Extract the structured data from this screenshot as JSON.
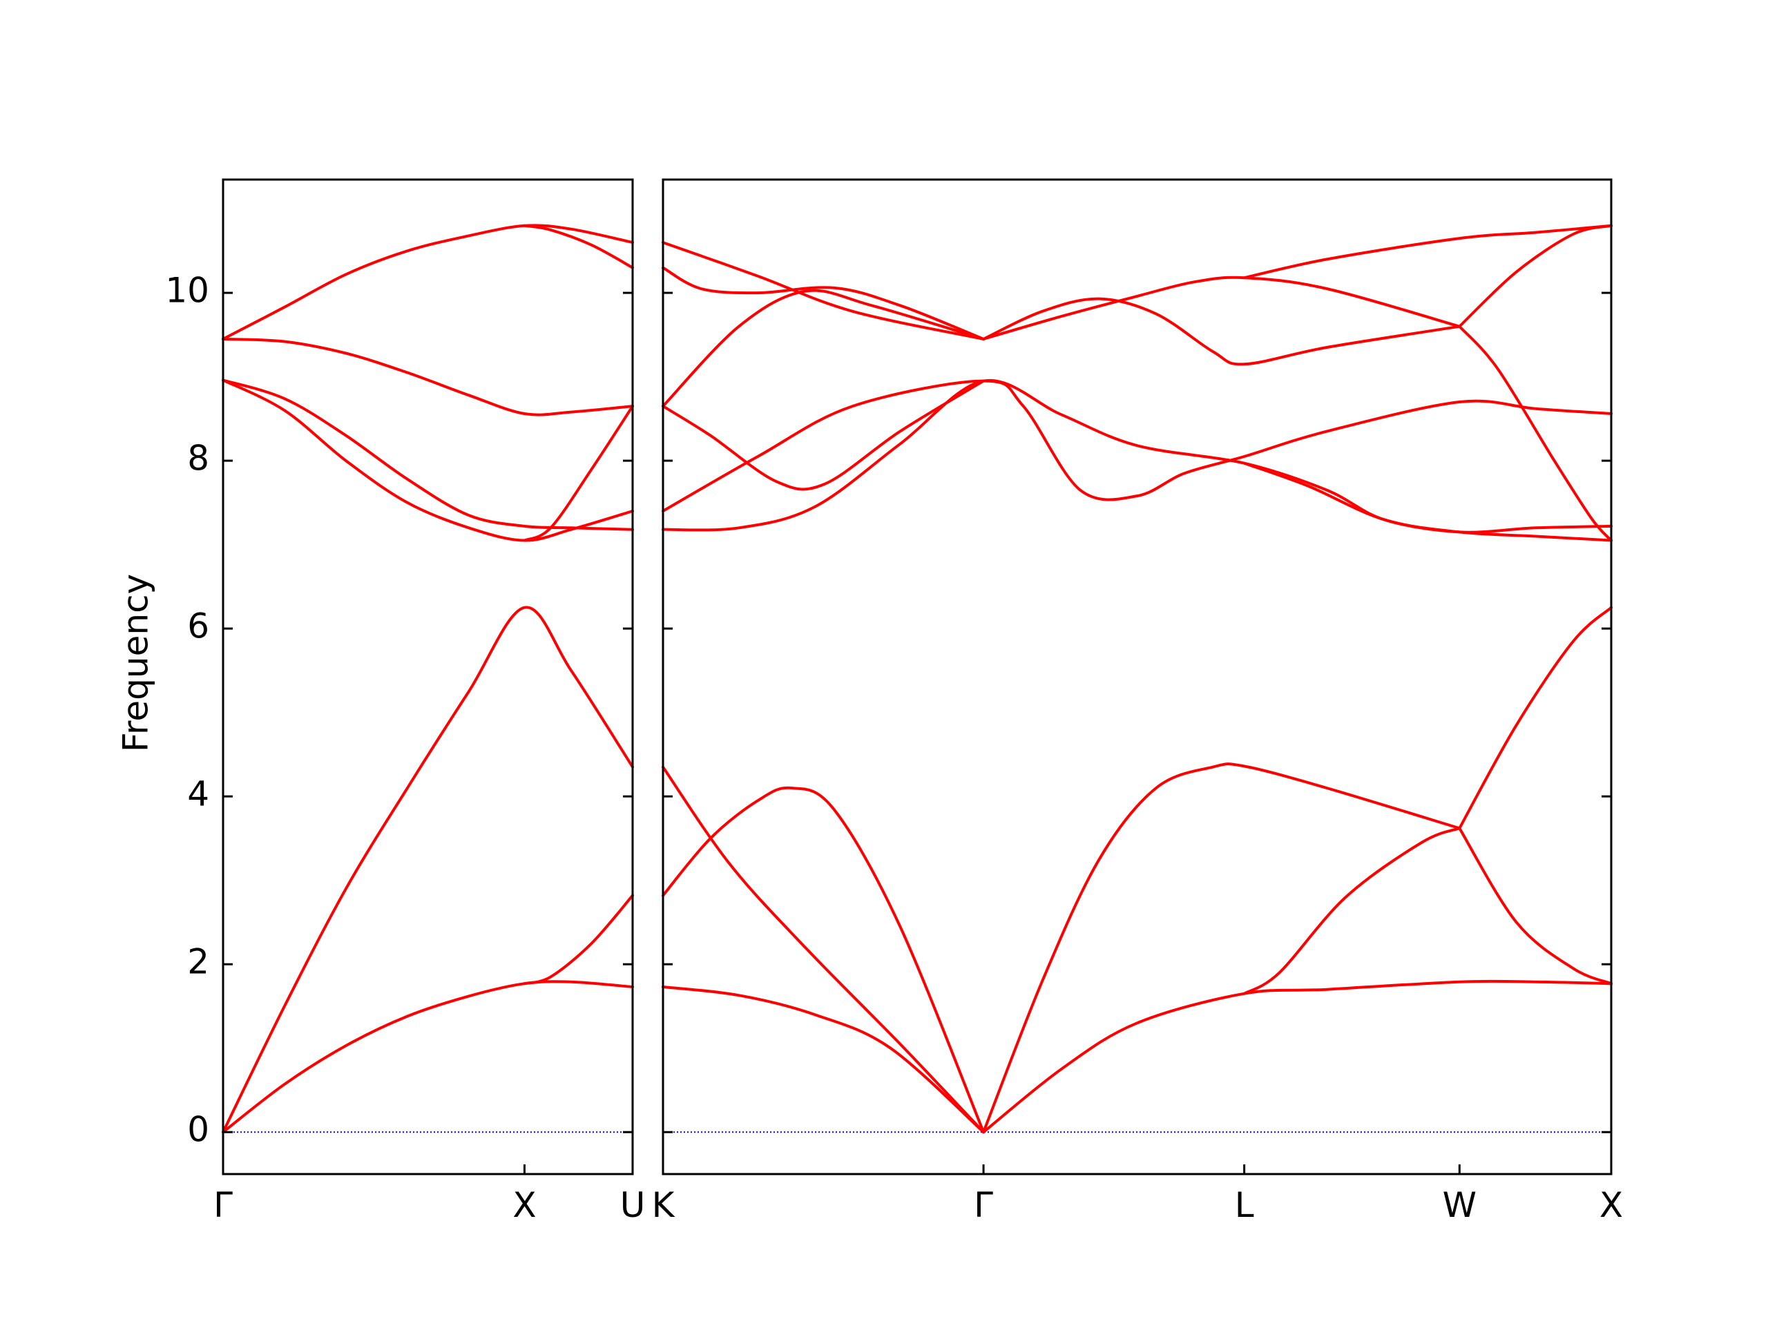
{
  "chart_data": {
    "type": "line",
    "ylabel": "Frequency",
    "ylim": [
      -0.5,
      11.35
    ],
    "yticks": [
      0,
      2,
      4,
      6,
      8,
      10
    ],
    "ytick_labels": [
      "0",
      "2",
      "4",
      "6",
      "8",
      "10"
    ],
    "band_color": "#ff0000",
    "zero_line_color": "#0000ff",
    "grid": false,
    "panels": [
      {
        "name": "Γ-X-U",
        "xticks": [
          {
            "label": "Γ",
            "t": 0.0
          },
          {
            "label": "X",
            "t": 0.736
          },
          {
            "label": "U",
            "t": 1.0
          }
        ],
        "bands": [
          [
            [
              0,
              0
            ],
            [
              0.15,
              0.57
            ],
            [
              0.3,
              1.03
            ],
            [
              0.45,
              1.38
            ],
            [
              0.6,
              1.62
            ],
            [
              0.736,
              1.77
            ],
            [
              0.85,
              1.79
            ],
            [
              1.0,
              1.73
            ]
          ],
          [
            [
              0,
              0
            ],
            [
              0.15,
              1.5
            ],
            [
              0.3,
              2.9
            ],
            [
              0.45,
              4.1
            ],
            [
              0.6,
              5.25
            ],
            [
              0.736,
              6.25
            ],
            [
              0.85,
              5.5
            ],
            [
              1.0,
              4.35
            ]
          ],
          [
            [
              0.736,
              1.77
            ],
            [
              0.8,
              1.85
            ],
            [
              0.9,
              2.25
            ],
            [
              1.0,
              2.82
            ]
          ],
          [
            [
              0,
              8.96
            ],
            [
              0.15,
              8.6
            ],
            [
              0.3,
              8.0
            ],
            [
              0.45,
              7.5
            ],
            [
              0.6,
              7.2
            ],
            [
              0.736,
              7.05
            ],
            [
              0.85,
              7.18
            ],
            [
              1.0,
              7.4
            ]
          ],
          [
            [
              0,
              8.96
            ],
            [
              0.15,
              8.74
            ],
            [
              0.3,
              8.3
            ],
            [
              0.45,
              7.78
            ],
            [
              0.6,
              7.35
            ],
            [
              0.736,
              7.22
            ],
            [
              0.85,
              7.2
            ],
            [
              1.0,
              7.18
            ]
          ],
          [
            [
              0.736,
              7.05
            ],
            [
              0.8,
              7.2
            ],
            [
              0.9,
              7.9
            ],
            [
              1.0,
              8.65
            ]
          ],
          [
            [
              0,
              9.45
            ],
            [
              0.15,
              9.42
            ],
            [
              0.3,
              9.28
            ],
            [
              0.45,
              9.05
            ],
            [
              0.6,
              8.78
            ],
            [
              0.736,
              8.56
            ],
            [
              0.85,
              8.58
            ],
            [
              1.0,
              8.65
            ]
          ],
          [
            [
              0,
              9.45
            ],
            [
              0.15,
              9.83
            ],
            [
              0.3,
              10.22
            ],
            [
              0.45,
              10.5
            ],
            [
              0.6,
              10.68
            ],
            [
              0.736,
              10.8
            ],
            [
              0.85,
              10.76
            ],
            [
              1.0,
              10.6
            ]
          ],
          [
            [
              0.736,
              10.8
            ],
            [
              0.8,
              10.75
            ],
            [
              0.9,
              10.57
            ],
            [
              1.0,
              10.3
            ]
          ]
        ]
      },
      {
        "name": "K-Γ-L-W-X",
        "xticks": [
          {
            "label": "K",
            "t": 0.0
          },
          {
            "label": "Γ",
            "t": 0.338
          },
          {
            "label": "L",
            "t": 0.613
          },
          {
            "label": "W",
            "t": 0.84
          },
          {
            "label": "X",
            "t": 1.0
          }
        ],
        "bands": [
          [
            [
              0,
              1.73
            ],
            [
              0.08,
              1.63
            ],
            [
              0.16,
              1.4
            ],
            [
              0.24,
              1.0
            ],
            [
              0.338,
              0
            ]
          ],
          [
            [
              0,
              4.35
            ],
            [
              0.07,
              3.2
            ],
            [
              0.15,
              2.2
            ],
            [
              0.25,
              1.05
            ],
            [
              0.338,
              0
            ]
          ],
          [
            [
              0,
              2.82
            ],
            [
              0.05,
              3.5
            ],
            [
              0.1,
              3.95
            ],
            [
              0.135,
              4.1
            ],
            [
              0.18,
              3.85
            ],
            [
              0.25,
              2.45
            ],
            [
              0.338,
              0
            ]
          ],
          [
            [
              0.338,
              0
            ],
            [
              0.42,
              0.75
            ],
            [
              0.5,
              1.3
            ],
            [
              0.613,
              1.65
            ],
            [
              0.7,
              1.7
            ],
            [
              0.84,
              1.79
            ],
            [
              0.92,
              1.79
            ],
            [
              1.0,
              1.77
            ]
          ],
          [
            [
              0.338,
              0
            ],
            [
              0.4,
              1.8
            ],
            [
              0.46,
              3.25
            ],
            [
              0.52,
              4.1
            ],
            [
              0.58,
              4.35
            ],
            [
              0.613,
              4.36
            ],
            [
              0.7,
              4.1
            ],
            [
              0.84,
              3.62
            ]
          ],
          [
            [
              0.613,
              1.65
            ],
            [
              0.65,
              1.9
            ],
            [
              0.72,
              2.8
            ],
            [
              0.8,
              3.45
            ],
            [
              0.84,
              3.62
            ]
          ],
          [
            [
              0.84,
              3.62
            ],
            [
              0.9,
              4.85
            ],
            [
              0.96,
              5.85
            ],
            [
              1.0,
              6.25
            ]
          ],
          [
            [
              0.84,
              3.62
            ],
            [
              0.9,
              2.5
            ],
            [
              0.96,
              1.95
            ],
            [
              1.0,
              1.77
            ]
          ],
          [
            [
              0,
              7.18
            ],
            [
              0.08,
              7.2
            ],
            [
              0.16,
              7.45
            ],
            [
              0.25,
              8.2
            ],
            [
              0.338,
              8.95
            ],
            [
              0.42,
              8.55
            ],
            [
              0.5,
              8.18
            ],
            [
              0.613,
              7.97
            ],
            [
              0.7,
              7.65
            ],
            [
              0.76,
              7.3
            ],
            [
              0.84,
              7.15
            ],
            [
              0.92,
              7.2
            ],
            [
              1.0,
              7.22
            ]
          ],
          [
            [
              0,
              7.4
            ],
            [
              0.1,
              8.05
            ],
            [
              0.2,
              8.65
            ],
            [
              0.338,
              8.95
            ],
            [
              0.38,
              8.65
            ],
            [
              0.44,
              7.65
            ],
            [
              0.5,
              7.58
            ],
            [
              0.55,
              7.85
            ],
            [
              0.613,
              8.05
            ],
            [
              0.7,
              8.35
            ],
            [
              0.84,
              8.7
            ],
            [
              0.92,
              8.62
            ],
            [
              1.0,
              8.56
            ]
          ],
          [
            [
              0,
              8.65
            ],
            [
              0.05,
              8.3
            ],
            [
              0.12,
              7.75
            ],
            [
              0.17,
              7.72
            ],
            [
              0.25,
              8.35
            ],
            [
              0.338,
              8.95
            ]
          ],
          [
            [
              0.613,
              7.97
            ],
            [
              0.68,
              7.7
            ],
            [
              0.76,
              7.3
            ],
            [
              0.84,
              7.15
            ],
            [
              0.92,
              7.1
            ],
            [
              1.0,
              7.05
            ]
          ],
          [
            [
              0,
              8.65
            ],
            [
              0.08,
              9.6
            ],
            [
              0.15,
              10.02
            ],
            [
              0.22,
              9.85
            ],
            [
              0.338,
              9.45
            ]
          ],
          [
            [
              0,
              10.3
            ],
            [
              0.04,
              10.05
            ],
            [
              0.1,
              10.0
            ],
            [
              0.18,
              10.06
            ],
            [
              0.25,
              9.85
            ],
            [
              0.338,
              9.45
            ]
          ],
          [
            [
              0,
              10.6
            ],
            [
              0.1,
              10.2
            ],
            [
              0.2,
              9.78
            ],
            [
              0.338,
              9.45
            ]
          ],
          [
            [
              0.338,
              9.45
            ],
            [
              0.4,
              9.78
            ],
            [
              0.46,
              9.93
            ],
            [
              0.52,
              9.75
            ],
            [
              0.58,
              9.3
            ],
            [
              0.613,
              9.15
            ],
            [
              0.7,
              9.35
            ],
            [
              0.84,
              9.6
            ]
          ],
          [
            [
              0.338,
              9.45
            ],
            [
              0.42,
              9.72
            ],
            [
              0.5,
              9.96
            ],
            [
              0.56,
              10.13
            ],
            [
              0.613,
              10.18
            ],
            [
              0.7,
              10.05
            ],
            [
              0.84,
              9.6
            ]
          ],
          [
            [
              0.613,
              10.18
            ],
            [
              0.7,
              10.4
            ],
            [
              0.84,
              10.65
            ],
            [
              0.92,
              10.72
            ],
            [
              1.0,
              10.8
            ]
          ],
          [
            [
              0.84,
              9.6
            ],
            [
              0.88,
              9.1
            ],
            [
              0.94,
              8.0
            ],
            [
              0.98,
              7.3
            ],
            [
              1.0,
              7.05
            ]
          ],
          [
            [
              0.84,
              9.6
            ],
            [
              0.9,
              10.25
            ],
            [
              0.96,
              10.7
            ],
            [
              1.0,
              10.8
            ]
          ]
        ]
      }
    ]
  }
}
